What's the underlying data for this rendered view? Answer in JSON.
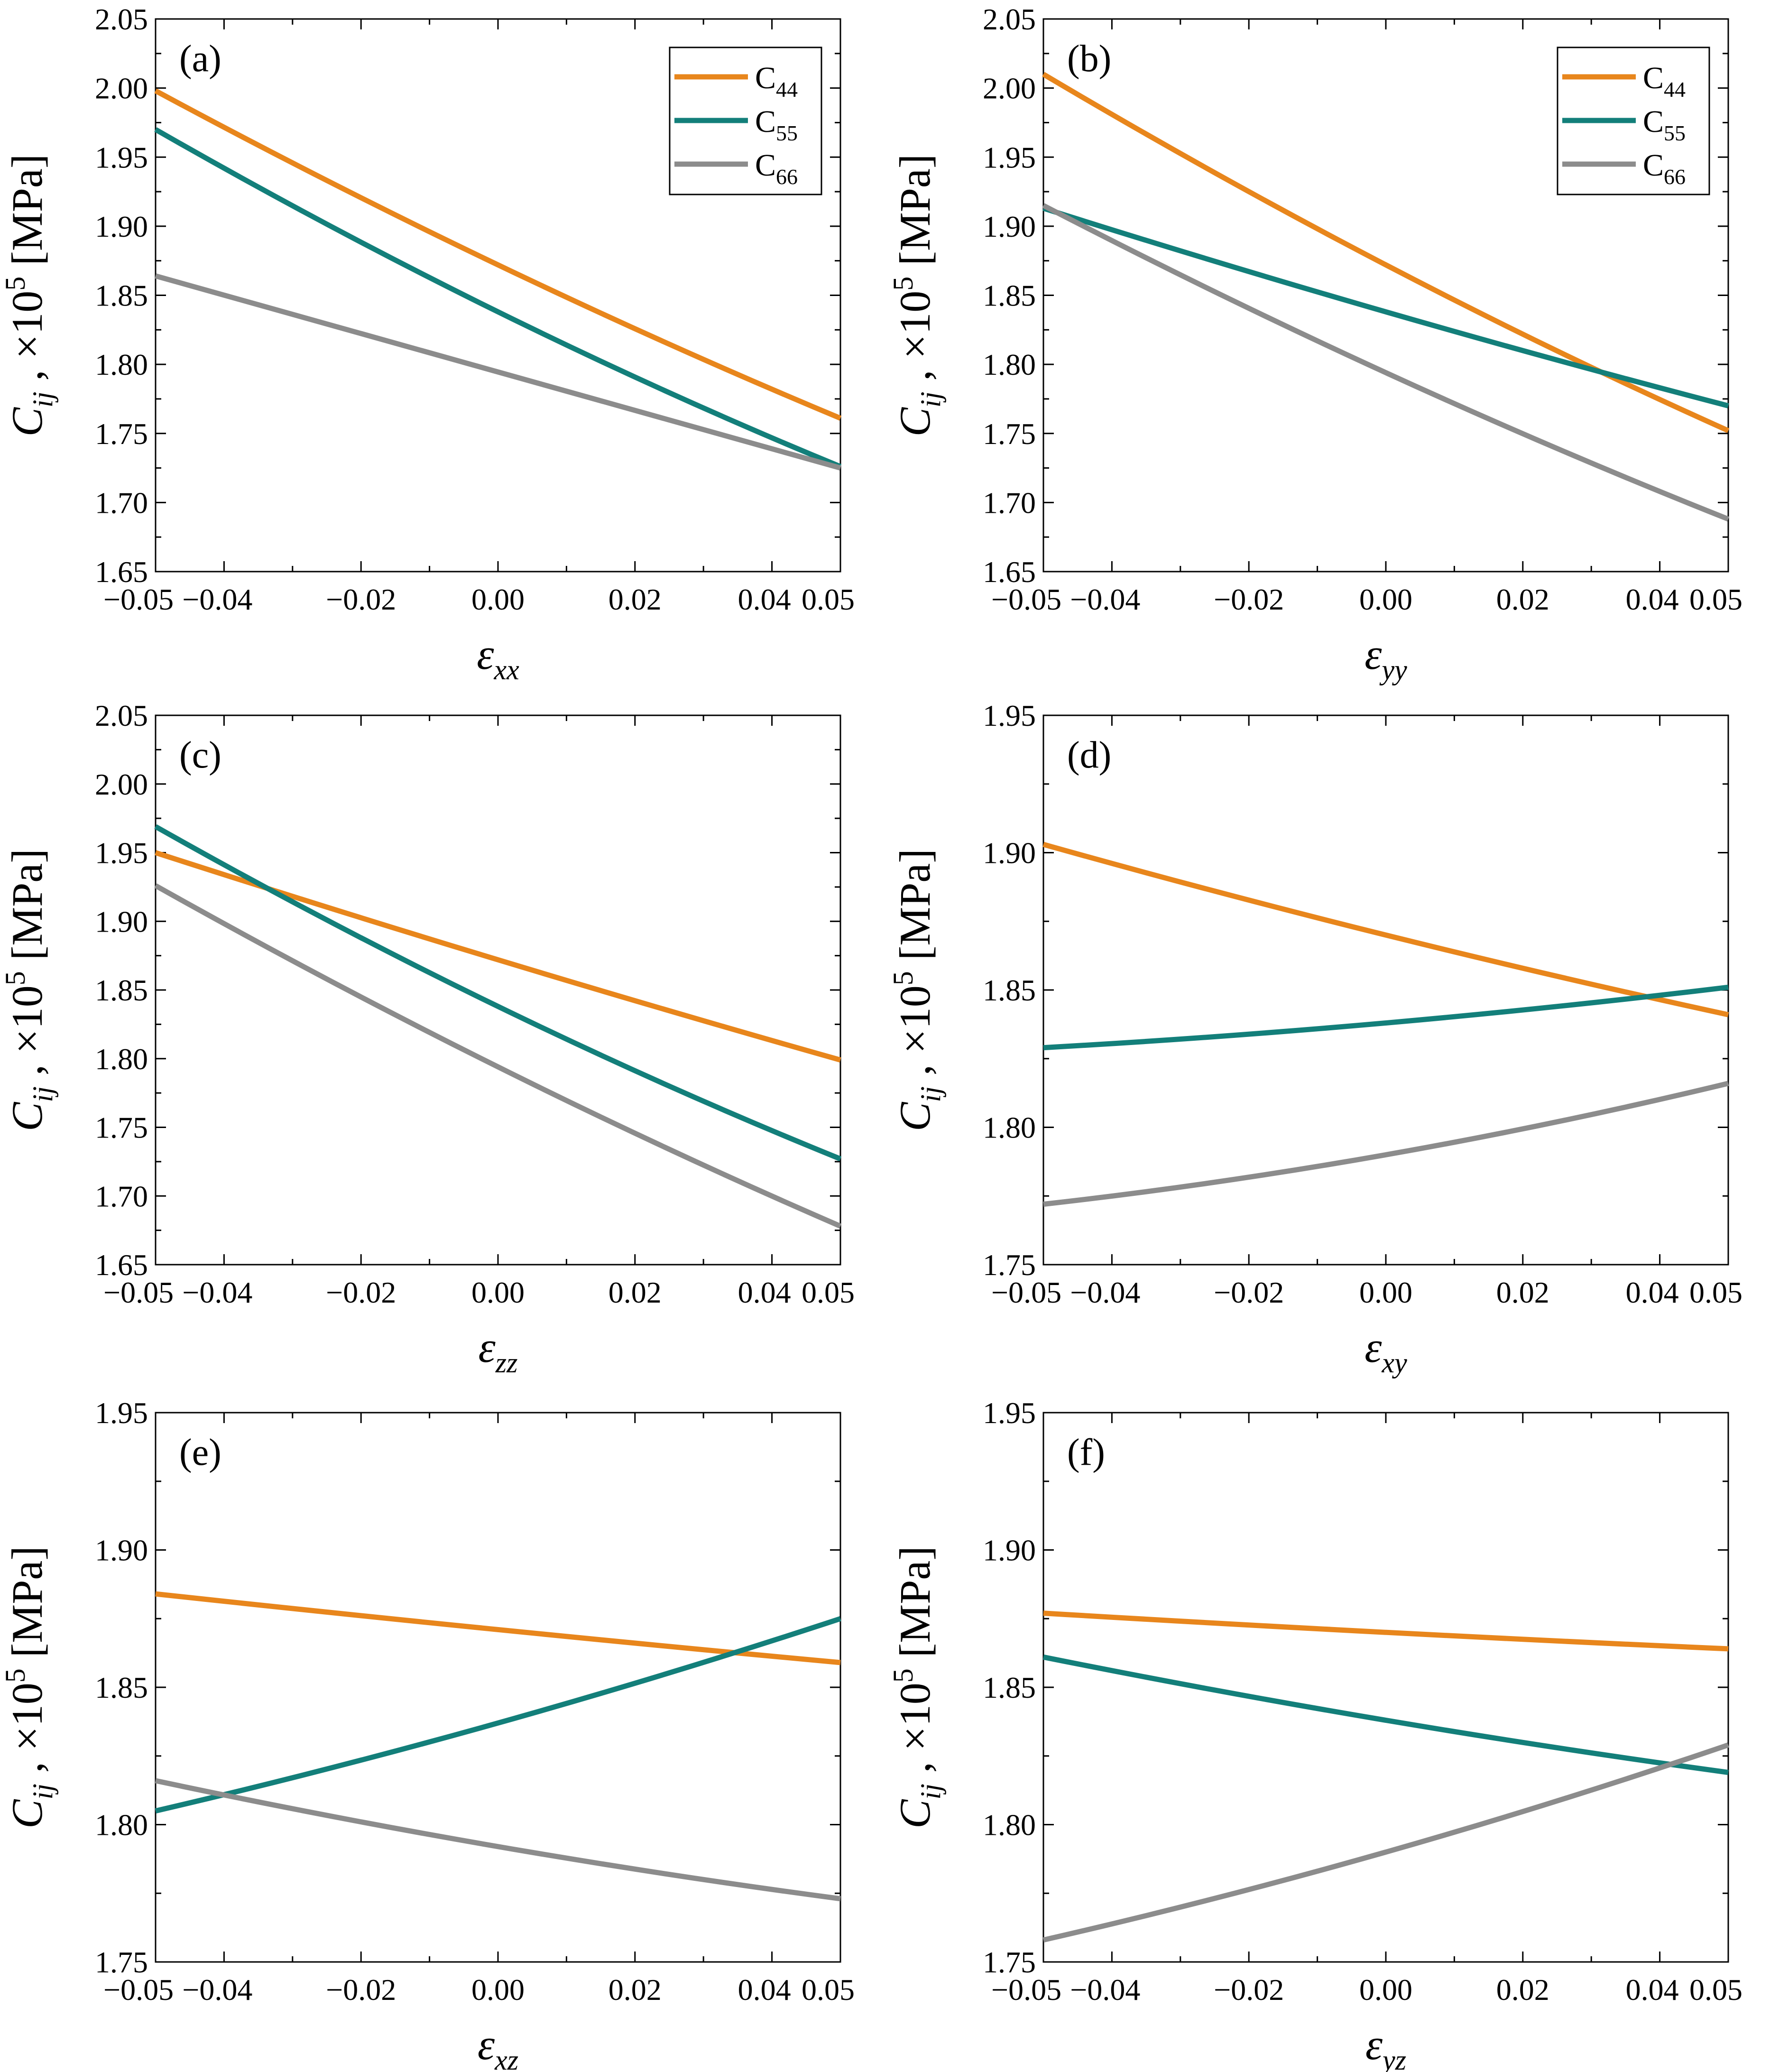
{
  "colors": {
    "C44": "#e8861c",
    "C55": "#137f7a",
    "C66": "#8c8c8c"
  },
  "chart_data": [
    {
      "type": "line",
      "panel": "(a)",
      "xlabel": {
        "main": "ε",
        "sub": "xx"
      },
      "ylabel": {
        "main": "C",
        "sub": "ij",
        "rest": " ,  ×10",
        "sup": "5",
        "unit": " [MPa]"
      },
      "xlim": [
        -0.05,
        0.05
      ],
      "ylim": [
        1.65,
        2.05
      ],
      "xticks": [
        "−0.05",
        "−0.04",
        "−0.02",
        "0.00",
        "0.02",
        "0.04",
        "0.05"
      ],
      "yticks": [
        "1.65",
        "1.70",
        "1.75",
        "1.80",
        "1.85",
        "1.90",
        "1.95",
        "2.00",
        "2.05"
      ],
      "legend": [
        {
          "main": "C",
          "sub": "44",
          "key": "C44"
        },
        {
          "main": "C",
          "sub": "55",
          "key": "C55"
        },
        {
          "main": "C",
          "sub": "66",
          "key": "C66"
        }
      ],
      "x": [
        -0.05,
        0.0,
        0.05
      ],
      "series": [
        {
          "name": "C44",
          "values": [
            1.998,
            1.872,
            1.761
          ]
        },
        {
          "name": "C55",
          "values": [
            1.97,
            1.838,
            1.726
          ]
        },
        {
          "name": "C66",
          "values": [
            1.864,
            1.794,
            1.725
          ]
        }
      ]
    },
    {
      "type": "line",
      "panel": "(b)",
      "xlabel": {
        "main": "ε",
        "sub": "yy"
      },
      "ylabel": {
        "main": "C",
        "sub": "ij",
        "rest": " ,  ×10",
        "sup": "5",
        "unit": " [MPa]"
      },
      "xlim": [
        -0.05,
        0.05
      ],
      "ylim": [
        1.65,
        2.05
      ],
      "xticks": [
        "−0.05",
        "−0.04",
        "−0.02",
        "0.00",
        "0.02",
        "0.04",
        "0.05"
      ],
      "yticks": [
        "1.65",
        "1.70",
        "1.75",
        "1.80",
        "1.85",
        "1.90",
        "1.95",
        "2.00",
        "2.05"
      ],
      "legend": [
        {
          "main": "C",
          "sub": "44",
          "key": "C44"
        },
        {
          "main": "C",
          "sub": "55",
          "key": "C55"
        },
        {
          "main": "C",
          "sub": "66",
          "key": "C66"
        }
      ],
      "x": [
        -0.05,
        0.0,
        0.05
      ],
      "series": [
        {
          "name": "C44",
          "values": [
            2.01,
            1.872,
            1.752
          ]
        },
        {
          "name": "C55",
          "values": [
            1.913,
            1.838,
            1.77
          ]
        },
        {
          "name": "C66",
          "values": [
            1.915,
            1.794,
            1.688
          ]
        }
      ]
    },
    {
      "type": "line",
      "panel": "(c)",
      "xlabel": {
        "main": "ε",
        "sub": "zz"
      },
      "ylabel": {
        "main": "C",
        "sub": "ij",
        "rest": " ,  ×10",
        "sup": "5",
        "unit": " [MPa]"
      },
      "xlim": [
        -0.05,
        0.05
      ],
      "ylim": [
        1.65,
        2.05
      ],
      "xticks": [
        "−0.05",
        "−0.04",
        "−0.02",
        "0.00",
        "0.02",
        "0.04",
        "0.05"
      ],
      "yticks": [
        "1.65",
        "1.70",
        "1.75",
        "1.80",
        "1.85",
        "1.90",
        "1.95",
        "2.00",
        "2.05"
      ],
      "x": [
        -0.05,
        0.0,
        0.05
      ],
      "series": [
        {
          "name": "C44",
          "values": [
            1.95,
            1.872,
            1.799
          ]
        },
        {
          "name": "C55",
          "values": [
            1.969,
            1.838,
            1.727
          ]
        },
        {
          "name": "C66",
          "values": [
            1.926,
            1.794,
            1.678
          ]
        }
      ]
    },
    {
      "type": "line",
      "panel": "(d)",
      "xlabel": {
        "main": "ε",
        "sub": "xy"
      },
      "ylabel": {
        "main": "C",
        "sub": "ij",
        "rest": " ,  ×10",
        "sup": "5",
        "unit": " [MPa]"
      },
      "xlim": [
        -0.05,
        0.05
      ],
      "ylim": [
        1.75,
        1.95
      ],
      "xticks": [
        "−0.05",
        "−0.04",
        "−0.02",
        "0.00",
        "0.02",
        "0.04",
        "0.05"
      ],
      "yticks": [
        "1.75",
        "1.80",
        "1.85",
        "1.90",
        "1.95"
      ],
      "x": [
        -0.05,
        0.0,
        0.05
      ],
      "series": [
        {
          "name": "C44",
          "values": [
            1.903,
            1.87,
            1.841
          ]
        },
        {
          "name": "C55",
          "values": [
            1.829,
            1.838,
            1.851
          ]
        },
        {
          "name": "C66",
          "values": [
            1.772,
            1.79,
            1.816
          ]
        }
      ]
    },
    {
      "type": "line",
      "panel": "(e)",
      "xlabel": {
        "main": "ε",
        "sub": "xz"
      },
      "ylabel": {
        "main": "C",
        "sub": "ij",
        "rest": " ,  ×10",
        "sup": "5",
        "unit": " [MPa]"
      },
      "xlim": [
        -0.05,
        0.05
      ],
      "ylim": [
        1.75,
        1.95
      ],
      "xticks": [
        "−0.05",
        "−0.04",
        "−0.02",
        "0.00",
        "0.02",
        "0.04",
        "0.05"
      ],
      "yticks": [
        "1.75",
        "1.80",
        "1.85",
        "1.90",
        "1.95"
      ],
      "x": [
        -0.05,
        0.0,
        0.05
      ],
      "series": [
        {
          "name": "C44",
          "values": [
            1.884,
            1.871,
            1.859
          ]
        },
        {
          "name": "C55",
          "values": [
            1.805,
            1.837,
            1.875
          ]
        },
        {
          "name": "C66",
          "values": [
            1.816,
            1.792,
            1.773
          ]
        }
      ]
    },
    {
      "type": "line",
      "panel": "(f)",
      "xlabel": {
        "main": "ε",
        "sub": "yz"
      },
      "ylabel": {
        "main": "C",
        "sub": "ij",
        "rest": " ,  ×10",
        "sup": "5",
        "unit": " [MPa]"
      },
      "xlim": [
        -0.05,
        0.05
      ],
      "ylim": [
        1.75,
        1.95
      ],
      "xticks": [
        "−0.05",
        "−0.04",
        "−0.02",
        "0.00",
        "0.02",
        "0.04",
        "0.05"
      ],
      "yticks": [
        "1.75",
        "1.80",
        "1.85",
        "1.90",
        "1.95"
      ],
      "x": [
        -0.05,
        0.0,
        0.05
      ],
      "series": [
        {
          "name": "C44",
          "values": [
            1.877,
            1.87,
            1.864
          ]
        },
        {
          "name": "C55",
          "values": [
            1.861,
            1.838,
            1.819
          ]
        },
        {
          "name": "C66",
          "values": [
            1.758,
            1.79,
            1.829
          ]
        }
      ]
    }
  ]
}
